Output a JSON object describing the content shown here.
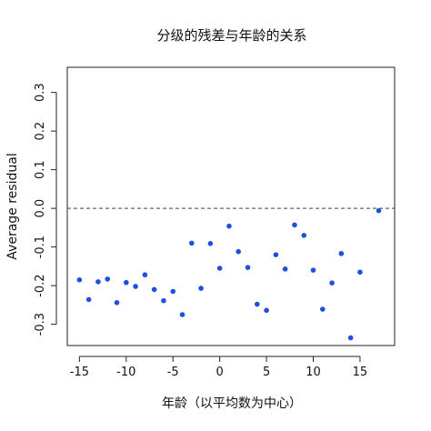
{
  "chart_data": {
    "type": "scatter",
    "title": "分级的残差与年龄的关系",
    "xlabel": "年龄（以平均数为中心）",
    "ylabel": "Average residual",
    "xlim": [
      -16.3,
      18.7
    ],
    "ylim": [
      -0.355,
      0.365
    ],
    "xticks": [
      -15,
      -10,
      -5,
      0,
      5,
      10,
      15
    ],
    "yticks": [
      -0.3,
      -0.2,
      -0.1,
      0.0,
      0.1,
      0.2,
      0.3
    ],
    "xtick_labels": [
      "-15",
      "-10",
      "-5",
      "0",
      "5",
      "10",
      "15"
    ],
    "ytick_labels": [
      "-0.3",
      "-0.2",
      "-0.1",
      "0.0",
      "0.1",
      "0.2",
      "0.3"
    ],
    "reference_line": {
      "y": 0,
      "style": "dashed"
    },
    "point_color": "#1f4fe0",
    "points": [
      {
        "x": -15,
        "y": -0.185
      },
      {
        "x": -14,
        "y": -0.236
      },
      {
        "x": -13,
        "y": -0.19
      },
      {
        "x": -12,
        "y": -0.183
      },
      {
        "x": -11,
        "y": -0.244
      },
      {
        "x": -10,
        "y": -0.192
      },
      {
        "x": -9,
        "y": -0.202
      },
      {
        "x": -8,
        "y": -0.172
      },
      {
        "x": -7,
        "y": -0.21
      },
      {
        "x": -6,
        "y": -0.239
      },
      {
        "x": -5,
        "y": -0.215
      },
      {
        "x": -4,
        "y": -0.275
      },
      {
        "x": -3,
        "y": -0.09
      },
      {
        "x": -2,
        "y": -0.207
      },
      {
        "x": -1,
        "y": -0.091
      },
      {
        "x": 0,
        "y": -0.155
      },
      {
        "x": 1,
        "y": -0.046
      },
      {
        "x": 2,
        "y": -0.112
      },
      {
        "x": 3,
        "y": -0.153
      },
      {
        "x": 4,
        "y": -0.248
      },
      {
        "x": 5,
        "y": -0.264
      },
      {
        "x": 6,
        "y": -0.12
      },
      {
        "x": 7,
        "y": -0.157
      },
      {
        "x": 8,
        "y": -0.043
      },
      {
        "x": 9,
        "y": -0.07
      },
      {
        "x": 10,
        "y": -0.16
      },
      {
        "x": 11,
        "y": -0.261
      },
      {
        "x": 12,
        "y": -0.193
      },
      {
        "x": 13,
        "y": -0.117
      },
      {
        "x": 14,
        "y": -0.335
      },
      {
        "x": 15,
        "y": -0.165
      },
      {
        "x": 17,
        "y": -0.006
      }
    ]
  }
}
